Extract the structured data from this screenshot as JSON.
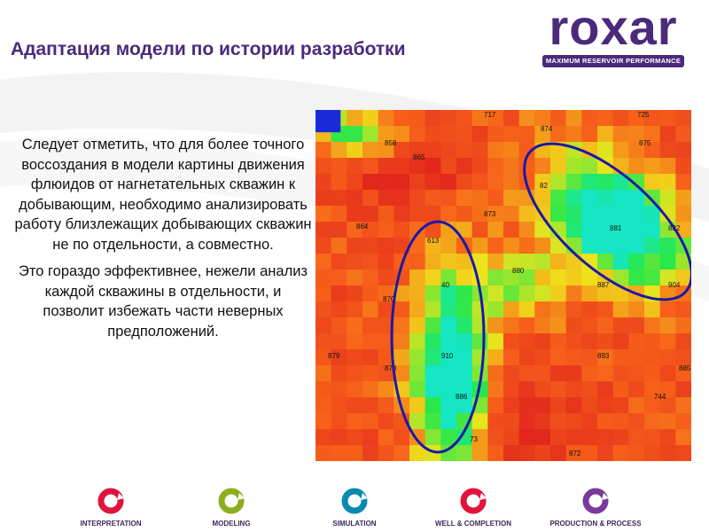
{
  "title": "Адаптация модели по истории разработки",
  "logo": {
    "word": "roxar",
    "tagline": "MAXIMUM RESERVOIR PERFORMANCE"
  },
  "body_paragraphs": [
    "Следует отметить, что для более точного воссоздания в модели картины движения флюидов от нагнетательных скважин к добывающим, необходимо анализировать работу близлежащих добывающих скважин не по отдельности, а совместно.",
    "Это гораздо эффективнее, нежели анализ каждой скважины в отдельности, и позволит избежать части неверных предположений."
  ],
  "map": {
    "wells": [
      "717",
      "725",
      "874",
      "875",
      "858",
      "865",
      "82",
      "873",
      "864",
      "881",
      "882",
      "613",
      "880",
      "40",
      "887",
      "904",
      "870",
      "879",
      "910",
      "878",
      "893",
      "886",
      "744",
      "73",
      "872",
      "885"
    ],
    "colors": {
      "red": "#e2271d",
      "orange": "#f7611a",
      "yellow": "#f0e41b",
      "green": "#27e84a",
      "cyan": "#16e6c4",
      "blue": "#1b2ad8",
      "ellipse": "#1a1aa6"
    }
  },
  "footer": {
    "items": [
      {
        "label": "INTERPRETATION",
        "color": "#e0143c"
      },
      {
        "label": "MODELING",
        "color": "#8cae1a"
      },
      {
        "label": "SIMULATION",
        "color": "#0a8ab0"
      },
      {
        "label": "WELL & COMPLETION",
        "color": "#e0143c"
      },
      {
        "label": "PRODUCTION & PROCESS",
        "color": "#7a3a9a"
      }
    ]
  }
}
